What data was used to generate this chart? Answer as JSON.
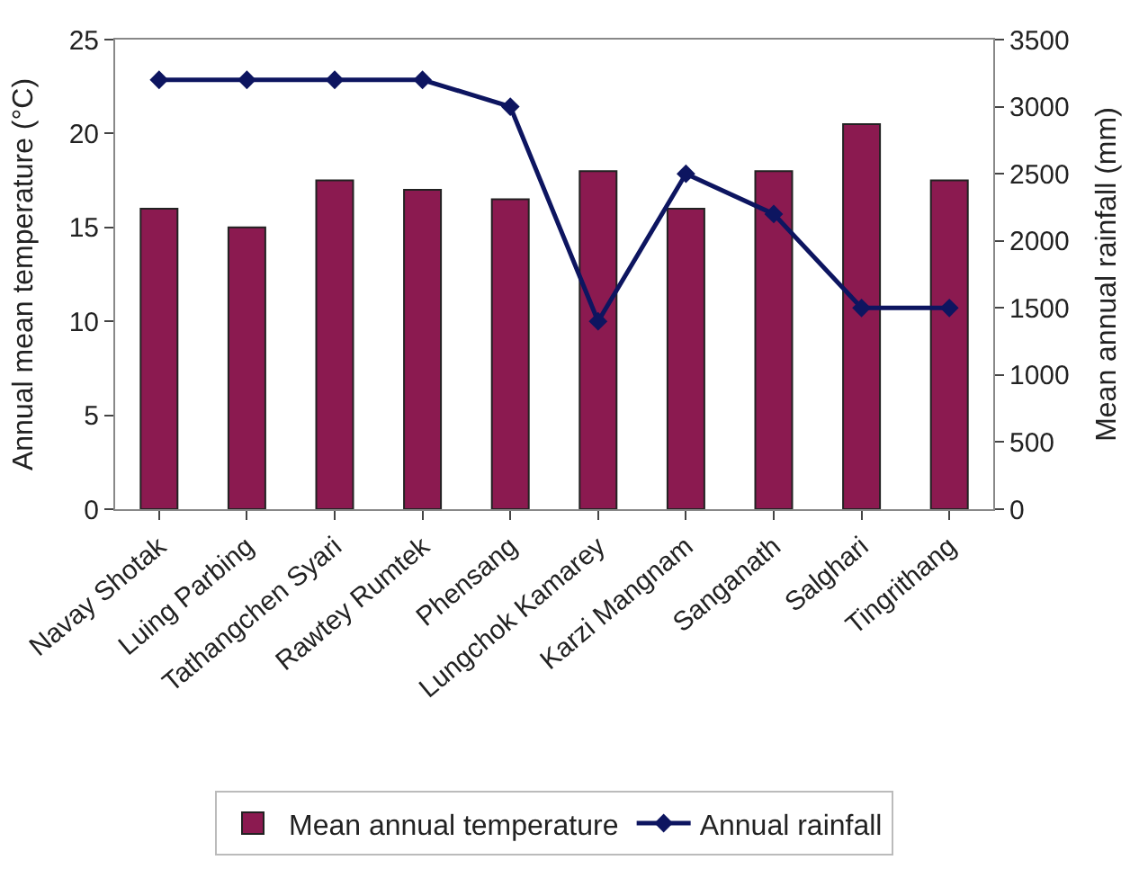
{
  "chart_data": {
    "type": "bar",
    "categories": [
      "Navay Shotak",
      "Luing Parbing",
      "Tathangchen Syari",
      "Rawtey Rumtek",
      "Phensang",
      "Lungchok Kamarey",
      "Karzi Mangnam",
      "Sanganath",
      "Salghari",
      "Tingrithang"
    ],
    "series": [
      {
        "name": "Mean annual temperature",
        "color": "#8b1a50",
        "values": [
          16,
          15,
          17.5,
          17,
          16.5,
          18,
          16,
          18,
          20.5,
          17.5
        ]
      },
      {
        "name": "Annual rainfall",
        "type": "line",
        "axis": "y2",
        "color": "#0d1560",
        "marker": "diamond",
        "values": [
          3200,
          3200,
          3200,
          3200,
          3000,
          1400,
          2500,
          2200,
          1500,
          1500
        ]
      }
    ],
    "ylabel": "Annual mean temperature (°C)",
    "y2label": "Mean annual rainfall (mm)",
    "ylim": [
      0,
      25
    ],
    "yticks": [
      0,
      5,
      10,
      15,
      20,
      25
    ],
    "y2lim": [
      0,
      3500
    ],
    "y2ticks": [
      0,
      500,
      1000,
      1500,
      2000,
      2500,
      3000,
      3500
    ],
    "legend": "bottom"
  }
}
